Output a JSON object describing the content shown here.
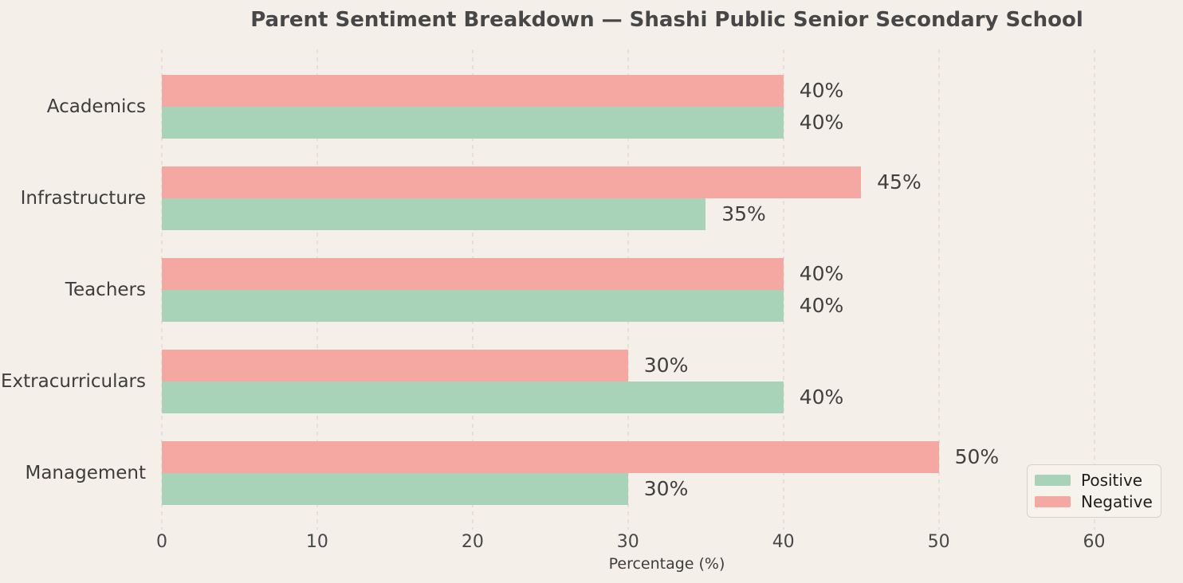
{
  "title": "Parent Sentiment Breakdown — Shashi Public Senior Secondary School",
  "colors": {
    "background": "#f4efe9",
    "positive": "#a9d3b8",
    "negative": "#f5a8a2",
    "gridline": "#e7e0d8",
    "title_text": "#474747",
    "category_text": "#3d3d3d",
    "value_text": "#404040",
    "tick_text": "#484848",
    "legend_border": "#d6d1c9"
  },
  "chart_data": {
    "type": "bar",
    "orientation": "horizontal",
    "title": "Parent Sentiment Breakdown — Shashi Public Senior Secondary School",
    "categories": [
      "Academics",
      "Infrastructure",
      "Teachers",
      "Extracurriculars",
      "Management"
    ],
    "series": [
      {
        "name": "Positive",
        "color": "#a9d3b8",
        "values": [
          40,
          35,
          40,
          40,
          30
        ]
      },
      {
        "name": "Negative",
        "color": "#f5a8a2",
        "values": [
          40,
          45,
          40,
          30,
          50
        ]
      }
    ],
    "value_suffix": "%",
    "value_labels": {
      "Positive": [
        "40%",
        "35%",
        "40%",
        "40%",
        "30%"
      ],
      "Negative": [
        "40%",
        "45%",
        "40%",
        "30%",
        "50%"
      ]
    },
    "xlabel": "Percentage (%)",
    "xticks": [
      0,
      10,
      20,
      30,
      40,
      50,
      60
    ],
    "xlim": [
      0,
      65
    ],
    "grid": "vertical-dashed",
    "legend_position": "lower-right",
    "legend": [
      "Positive",
      "Negative"
    ],
    "bar_order_top_to_bottom_within_group": [
      "Negative",
      "Positive"
    ]
  }
}
